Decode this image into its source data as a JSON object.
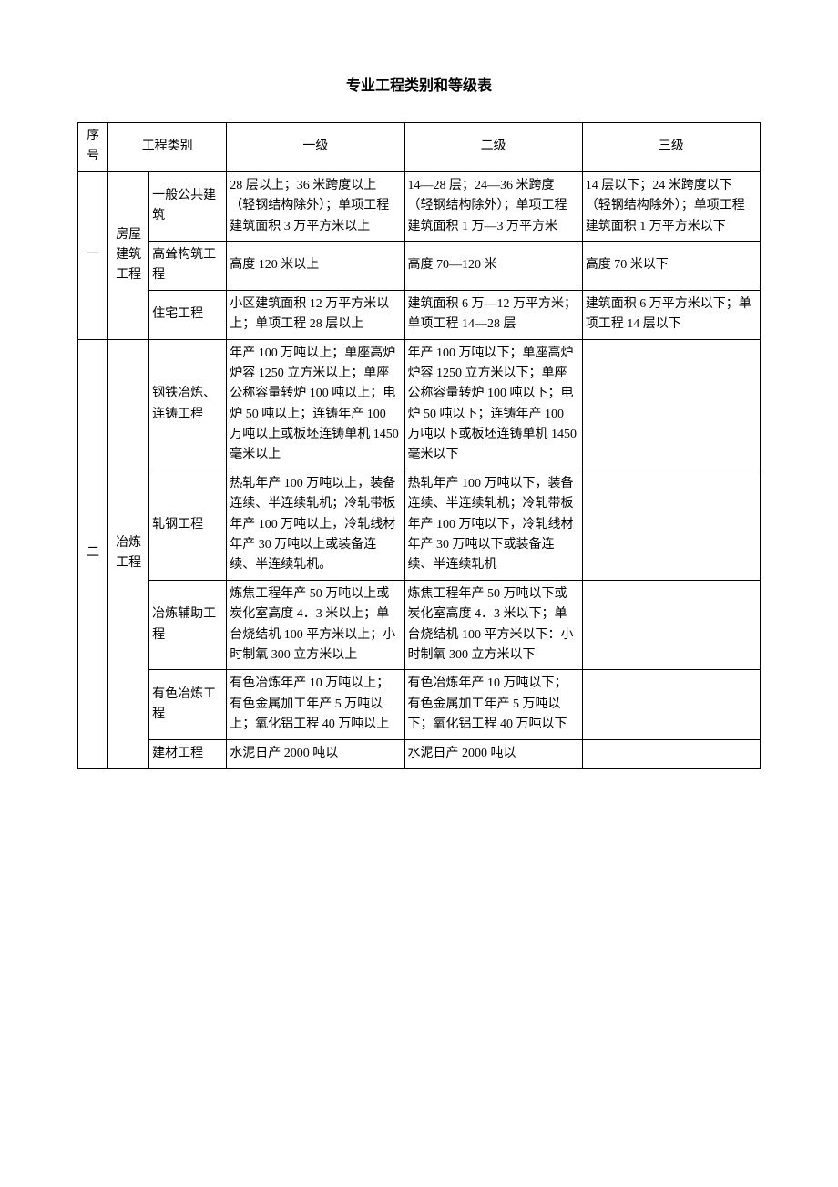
{
  "title": "专业工程类别和等级表",
  "headers": {
    "seq": "序号",
    "category": "工程类别",
    "level1": "一级",
    "level2": "二级",
    "level3": "三级"
  },
  "rows": [
    {
      "seq": "一",
      "cat1": "房屋建筑工程",
      "subs": [
        {
          "cat2": "一般公共建筑",
          "l1": "28 层以上；36 米跨度以上（轻钢结构除外）；单项工程建筑面积 3 万平方米以上",
          "l2": "14—28 层；24—36 米跨度（轻钢结构除外）；单项工程建筑面积 1 万—3 万平方米",
          "l3": "14 层以下；24 米跨度以下（轻钢结构除外）；单项工程建筑面积 1 万平方米以下"
        },
        {
          "cat2": "高耸构筑工程",
          "l1": "高度 120 米以上",
          "l2": "高度 70—120 米",
          "l3": "高度 70 米以下"
        },
        {
          "cat2": "住宅工程",
          "l1": "小区建筑面积 12 万平方米以上；单项工程 28 层以上",
          "l2": "建筑面积 6 万—12 万平方米；单项工程 14—28 层",
          "l3": "建筑面积 6 万平方米以下；单项工程 14 层以下"
        }
      ]
    },
    {
      "seq": "二",
      "cat1": "冶炼工程",
      "subs": [
        {
          "cat2": "钢铁冶炼、连铸工程",
          "l1": "年产 100 万吨以上；单座高炉炉容 1250 立方米以上；单座公称容量转炉 100 吨以上；电炉 50 吨以上；连铸年产 100 万吨以上或板坯连铸单机 1450 毫米以上",
          "l2": "年产 100 万吨以下；单座高炉炉容 1250 立方米以下；单座公称容量转炉 100 吨以下；电炉 50 吨以下；连铸年产 100 万吨以下或板坯连铸单机 1450 毫米以下",
          "l3": ""
        },
        {
          "cat2": "轧钢工程",
          "l1": "热轧年产 100 万吨以上，装备连续、半连续轧机；冷轧带板年产 100 万吨以上，冷轧线材年产 30 万吨以上或装备连续、半连续轧机。",
          "l2": "热轧年产 100 万吨以下，装备连续、半连续轧机；冷轧带板年产 100 万吨以下，冷轧线材年产 30 万吨以下或装备连续、半连续轧机",
          "l3": ""
        },
        {
          "cat2": "冶炼辅助工程",
          "l1": "炼焦工程年产 50 万吨以上或炭化室高度 4．3 米以上；单台烧结机 100 平方米以上；小时制氧 300 立方米以上",
          "l2": "炼焦工程年产 50 万吨以下或炭化室高度 4．3 米以下；单台烧结机 100 平方米以下：小时制氧 300 立方米以下",
          "l3": ""
        },
        {
          "cat2": "有色冶炼工程",
          "l1": "有色冶炼年产 10 万吨以上；有色金属加工年产 5 万吨以上；氧化铝工程 40 万吨以上",
          "l2": "有色冶炼年产 10 万吨以下；有色金属加工年产 5 万吨以下；氧化铝工程 40 万吨以下",
          "l3": ""
        },
        {
          "cat2": "建材工程",
          "l1": "水泥日产 2000 吨以",
          "l2": "水泥日产 2000 吨以",
          "l3": ""
        }
      ]
    }
  ]
}
